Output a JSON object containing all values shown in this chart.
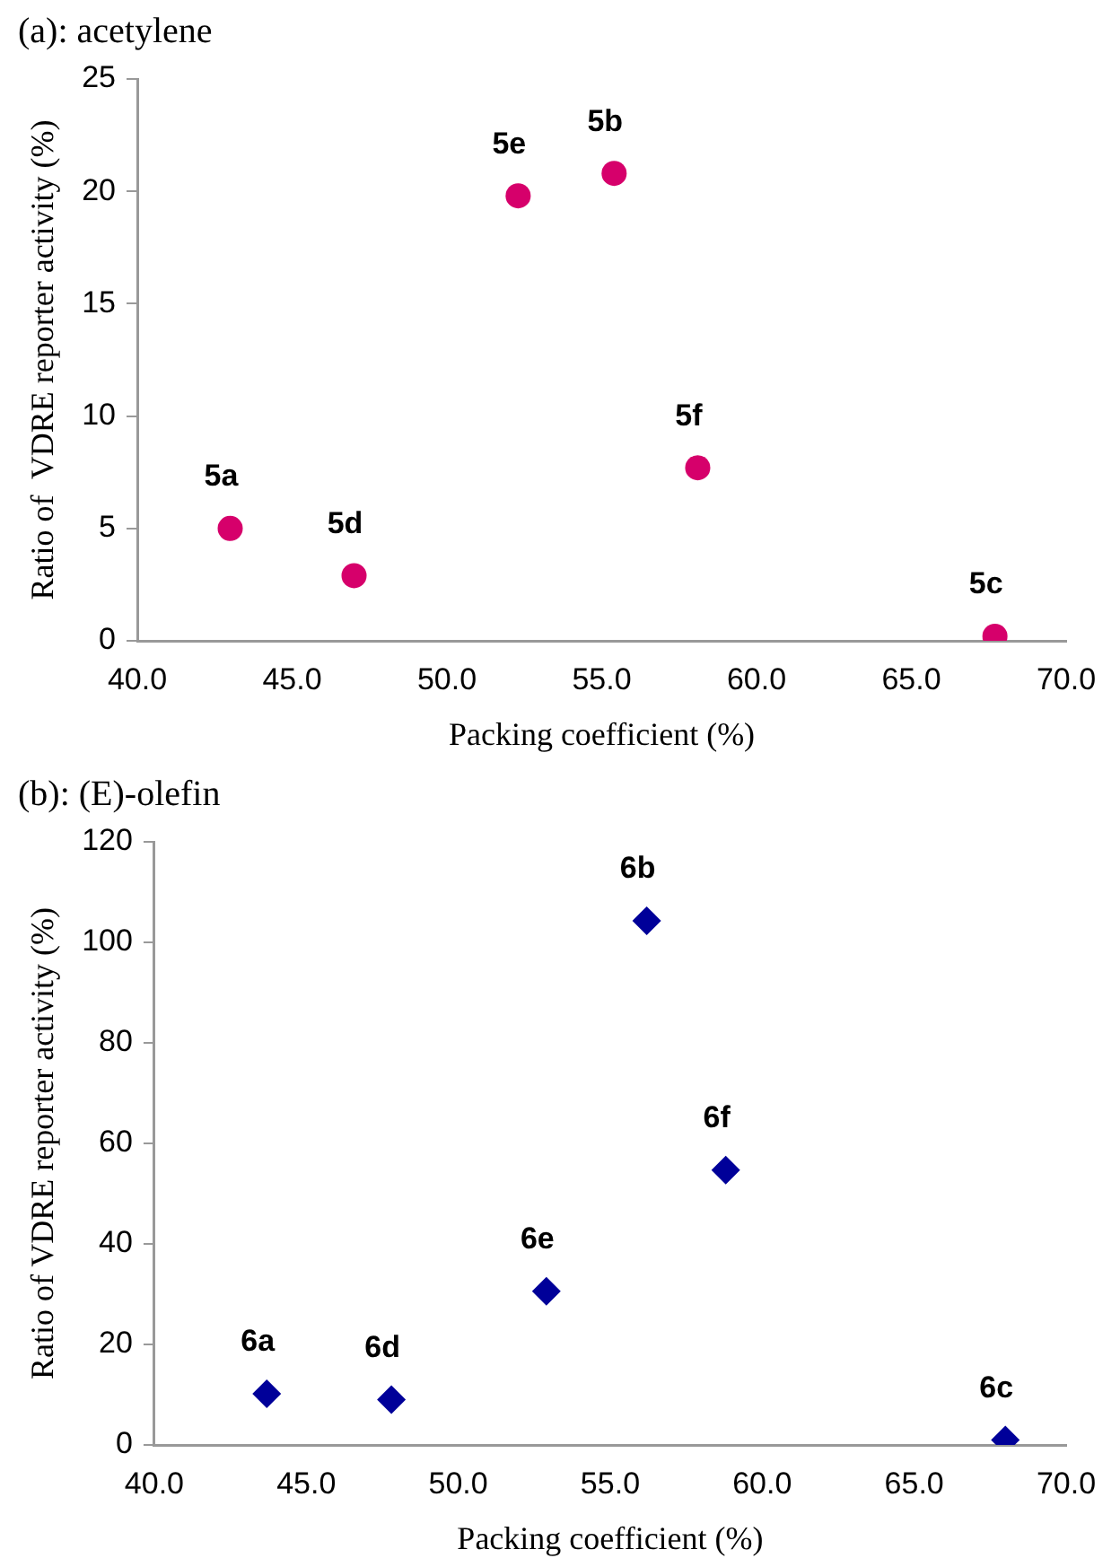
{
  "chart_data": [
    {
      "type": "scatter",
      "title": "(a): acetylene",
      "xlabel": "Packing coefficient (%)",
      "ylabel": "Ratio of  VDRE reporter activity (%)",
      "x": [
        43.0,
        47.0,
        52.3,
        55.4,
        58.1,
        67.7
      ],
      "series": [
        {
          "color": "#d6006b",
          "values": [
            5.0,
            2.9,
            19.8,
            20.8,
            7.7,
            0.2
          ]
        }
      ],
      "xlim": [
        40,
        70
      ],
      "xticks": [
        {
          "value": 40,
          "label": "40.0"
        },
        {
          "value": 45,
          "label": "45.0"
        },
        {
          "value": 50,
          "label": "50.0"
        },
        {
          "value": 55,
          "label": "55.0"
        },
        {
          "value": 60,
          "label": "60.0"
        },
        {
          "value": 65,
          "label": "65.0"
        },
        {
          "value": 70,
          "label": "70.0"
        }
      ],
      "ylim": [
        0,
        25
      ],
      "yticks": [
        0,
        5,
        10,
        15,
        20,
        25
      ],
      "grid": false,
      "legend": false,
      "marker": "circle",
      "annotations": [
        {
          "text": "5a",
          "x": 43.0,
          "y": 5.0
        },
        {
          "text": "5d",
          "x": 47.0,
          "y": 2.9
        },
        {
          "text": "5e",
          "x": 52.3,
          "y": 19.8
        },
        {
          "text": "5b",
          "x": 55.4,
          "y": 20.8
        },
        {
          "text": "5f",
          "x": 58.1,
          "y": 7.7
        },
        {
          "text": "5c",
          "x": 67.7,
          "y": 0.2
        }
      ]
    },
    {
      "type": "scatter",
      "title": "(b): (E)-olefin",
      "xlabel": "Packing coefficient (%)",
      "ylabel": "Ratio of VDRE reporter activity (%)",
      "x": [
        43.7,
        47.8,
        52.9,
        56.2,
        58.8,
        68.0
      ],
      "series": [
        {
          "color": "#000099",
          "values": [
            10.2,
            9.0,
            30.6,
            104.3,
            54.7,
            1.0
          ]
        }
      ],
      "xlim": [
        40,
        70
      ],
      "xticks": [
        {
          "value": 40,
          "label": "40.0"
        },
        {
          "value": 45,
          "label": "45.0"
        },
        {
          "value": 50,
          "label": "50.0"
        },
        {
          "value": 55,
          "label": "55.0"
        },
        {
          "value": 60,
          "label": "60.0"
        },
        {
          "value": 65,
          "label": "65.0"
        },
        {
          "value": 70,
          "label": "70.0"
        }
      ],
      "ylim": [
        0,
        120
      ],
      "yticks": [
        0,
        20,
        40,
        60,
        80,
        100,
        120
      ],
      "grid": false,
      "legend": false,
      "marker": "diamond",
      "annotations": [
        {
          "text": "6a",
          "x": 43.7,
          "y": 10.2
        },
        {
          "text": "6d",
          "x": 47.8,
          "y": 9.0
        },
        {
          "text": "6e",
          "x": 52.9,
          "y": 30.6
        },
        {
          "text": "6b",
          "x": 56.2,
          "y": 104.3
        },
        {
          "text": "6f",
          "x": 58.8,
          "y": 54.7
        },
        {
          "text": "6c",
          "x": 68.0,
          "y": 1.0
        }
      ]
    }
  ]
}
